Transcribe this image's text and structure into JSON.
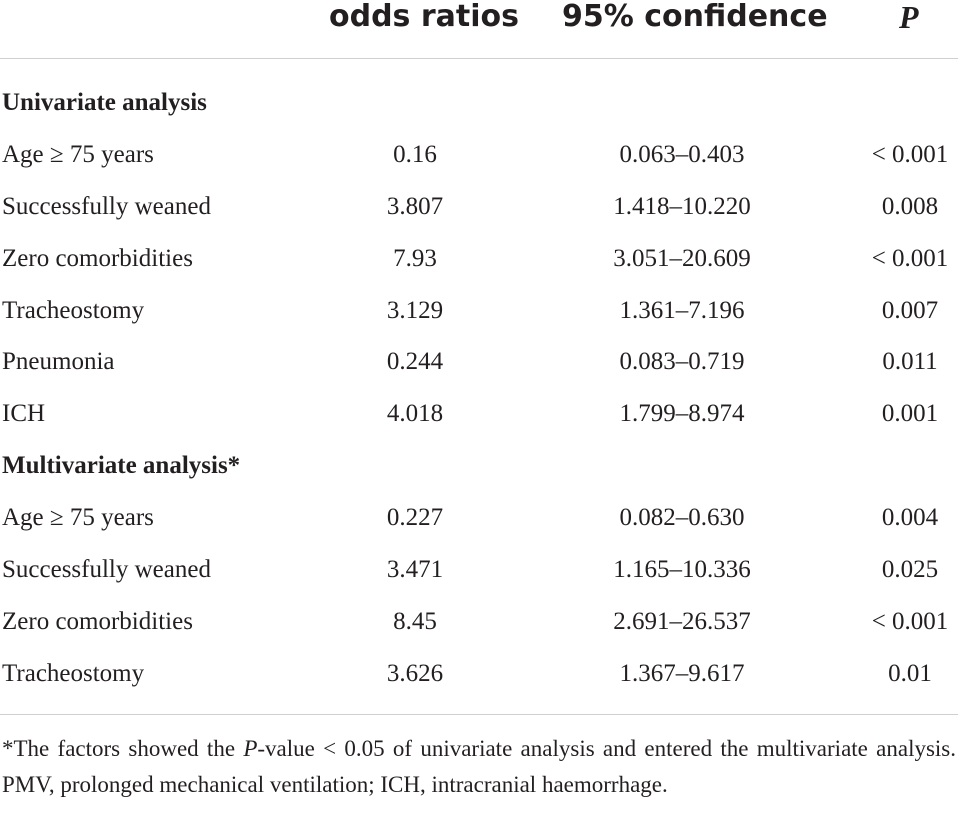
{
  "header": {
    "odds_ratios": "odds ratios",
    "confidence": "95% confidence",
    "p": "P"
  },
  "sections": [
    {
      "title": "Univariate analysis",
      "rows": [
        {
          "label": "Age ≥ 75 years",
          "or": "0.16",
          "ci": "0.063–0.403",
          "p": "< 0.001"
        },
        {
          "label": "Successfully weaned",
          "or": "3.807",
          "ci": "1.418–10.220",
          "p": "0.008"
        },
        {
          "label": "Zero comorbidities",
          "or": "7.93",
          "ci": "3.051–20.609",
          "p": "< 0.001"
        },
        {
          "label": "Tracheostomy",
          "or": "3.129",
          "ci": "1.361–7.196",
          "p": "0.007"
        },
        {
          "label": "Pneumonia",
          "or": "0.244",
          "ci": "0.083–0.719",
          "p": "0.011"
        },
        {
          "label": "ICH",
          "or": "4.018",
          "ci": "1.799–8.974",
          "p": "0.001"
        }
      ]
    },
    {
      "title": "Multivariate analysis*",
      "rows": [
        {
          "label": "Age ≥ 75 years",
          "or": "0.227",
          "ci": "0.082–0.630",
          "p": "0.004"
        },
        {
          "label": "Successfully weaned",
          "or": "3.471",
          "ci": "1.165–10.336",
          "p": "0.025"
        },
        {
          "label": "Zero comorbidities",
          "or": "8.45",
          "ci": "2.691–26.537",
          "p": "< 0.001"
        },
        {
          "label": "Tracheostomy",
          "or": "3.626",
          "ci": "1.367–9.617",
          "p": "0.01"
        }
      ]
    }
  ],
  "footnote": {
    "part1": "*The factors showed the ",
    "p_italic": "P",
    "part2": "-value < 0.05 of univariate analysis and entered the multivariate analysis. PMV, prolonged mechanical ventilation; ICH, intracranial haemorrhage."
  }
}
